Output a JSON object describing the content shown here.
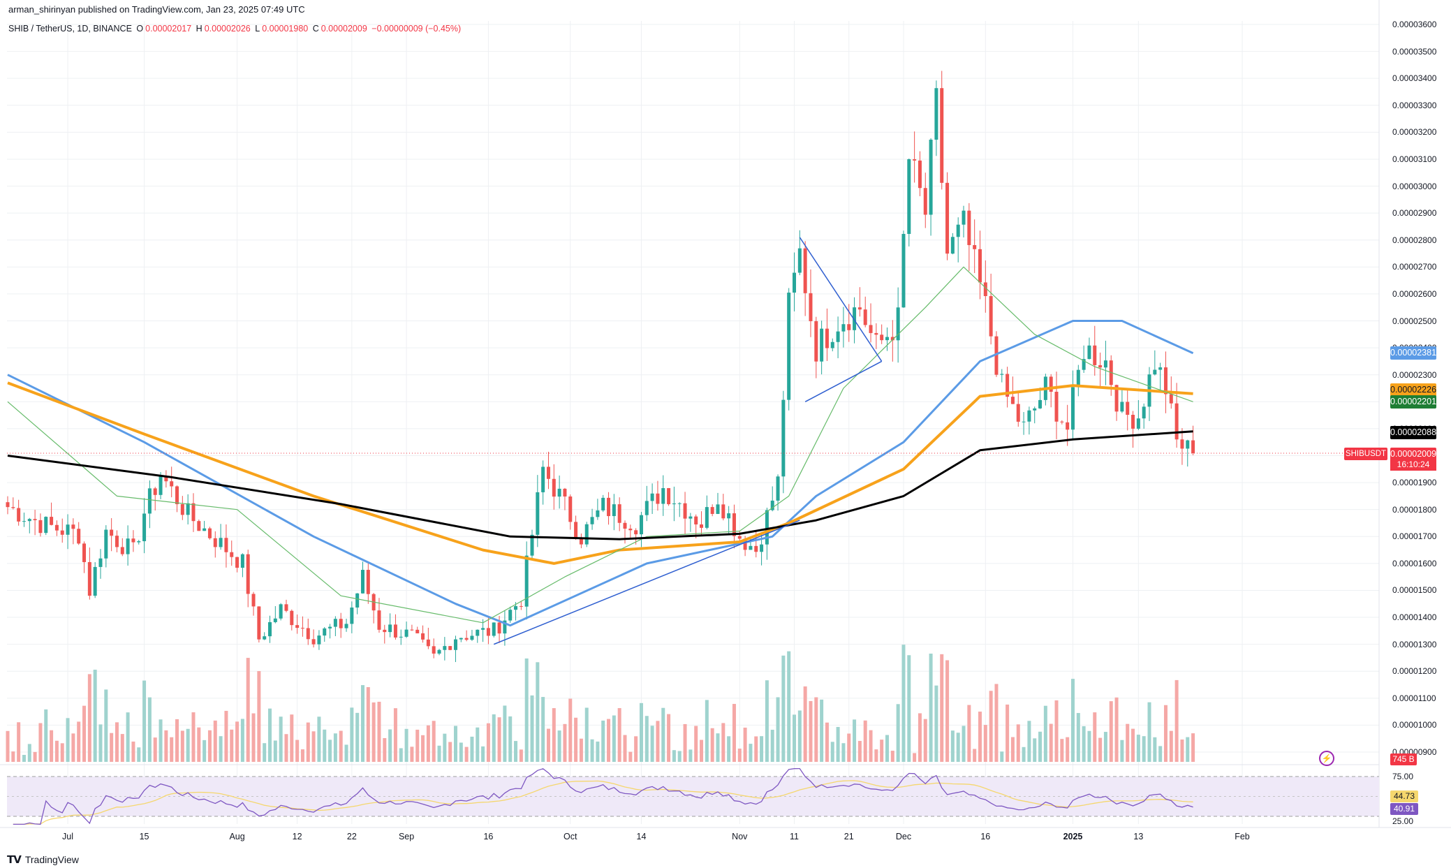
{
  "header": {
    "published": "arman_shirinyan published on TradingView.com, Jan 23, 2025 07:49 UTC"
  },
  "legend": {
    "symbol": "SHIB / TetherUS, 1D, BINANCE",
    "o_label": "O",
    "o": "0.00002017",
    "h_label": "H",
    "h": "0.00002026",
    "l_label": "L",
    "l": "0.00001980",
    "c_label": "C",
    "c": "0.00002009",
    "change": "−0.00000009 (−0.45%)"
  },
  "price_tags": {
    "ma_blue": "0.00002381",
    "ma_orange": "0.00002226",
    "ma_green": "0.00002201",
    "ma_black": "0.00002088",
    "last": "0.00002009",
    "symbol": "SHIBUSDT",
    "countdown": "16:10:24",
    "volume": "745 B",
    "rsi": "44.73",
    "rsi_ma": "40.91"
  },
  "colors": {
    "up": "#26a69a",
    "down": "#ef5350",
    "ma_blue": "#5b9be6",
    "ma_orange": "#f7a21b",
    "ma_green": "#66bb6a",
    "ma_black": "#000000",
    "rsi": "#7e57c2",
    "rsi_ma": "#f5d76e",
    "trendline": "#2f5fd0"
  },
  "footer": {
    "brand": "TradingView"
  },
  "chart_data": {
    "type": "candlestick",
    "title": "SHIB / TetherUS, 1D, BINANCE",
    "y_axis": {
      "min": 9e-06,
      "max": 3.6e-05,
      "step": 1e-06,
      "tick_labels": [
        "0.00003600",
        "0.00003500",
        "0.00003400",
        "0.00003300",
        "0.00003200",
        "0.00003100",
        "0.00003000",
        "0.00002900",
        "0.00002800",
        "0.00002700",
        "0.00002600",
        "0.00002500",
        "0.00002400",
        "0.00002300",
        "0.00002200",
        "0.00002100",
        "0.00002000",
        "0.00001900",
        "0.00001800",
        "0.00001700",
        "0.00001600",
        "0.00001500",
        "0.00001400",
        "0.00001300",
        "0.00001200",
        "0.00001100",
        "0.00001000",
        "0.00000900"
      ]
    },
    "x_axis": {
      "tick_labels": [
        {
          "label": "Jul",
          "date": "2024-07-01"
        },
        {
          "label": "15",
          "date": "2024-07-15"
        },
        {
          "label": "Aug",
          "date": "2024-08-01"
        },
        {
          "label": "12",
          "date": "2024-08-12"
        },
        {
          "label": "22",
          "date": "2024-08-22"
        },
        {
          "label": "Sep",
          "date": "2024-09-01"
        },
        {
          "label": "16",
          "date": "2024-09-16"
        },
        {
          "label": "Oct",
          "date": "2024-10-01"
        },
        {
          "label": "14",
          "date": "2024-10-14"
        },
        {
          "label": "Nov",
          "date": "2024-11-01"
        },
        {
          "label": "11",
          "date": "2024-11-11"
        },
        {
          "label": "21",
          "date": "2024-11-21"
        },
        {
          "label": "Dec",
          "date": "2024-12-01"
        },
        {
          "label": "16",
          "date": "2024-12-16"
        },
        {
          "label": "2025",
          "date": "2025-01-01",
          "bold": true
        },
        {
          "label": "13",
          "date": "2025-01-13"
        },
        {
          "label": "Feb",
          "date": "2025-02-01"
        }
      ],
      "range": [
        "2024-06-20",
        "2025-02-05"
      ]
    },
    "first_date": "2024-06-20",
    "close_keypoints": [
      [
        "2024-06-20",
        1.81e-05
      ],
      [
        "2024-06-27",
        1.74e-05
      ],
      [
        "2024-07-03",
        1.71e-05
      ],
      [
        "2024-07-05",
        1.5e-05
      ],
      [
        "2024-07-08",
        1.72e-05
      ],
      [
        "2024-07-13",
        1.64e-05
      ],
      [
        "2024-07-15",
        1.79e-05
      ],
      [
        "2024-07-18",
        1.93e-05
      ],
      [
        "2024-07-23",
        1.78e-05
      ],
      [
        "2024-07-28",
        1.69e-05
      ],
      [
        "2024-08-02",
        1.6e-05
      ],
      [
        "2024-08-05",
        1.32e-05
      ],
      [
        "2024-08-09",
        1.43e-05
      ],
      [
        "2024-08-15",
        1.33e-05
      ],
      [
        "2024-08-21",
        1.38e-05
      ],
      [
        "2024-08-24",
        1.55e-05
      ],
      [
        "2024-08-27",
        1.37e-05
      ],
      [
        "2024-09-02",
        1.33e-05
      ],
      [
        "2024-09-06",
        1.25e-05
      ],
      [
        "2024-09-10",
        1.33e-05
      ],
      [
        "2024-09-17",
        1.35e-05
      ],
      [
        "2024-09-22",
        1.47e-05
      ],
      [
        "2024-09-26",
        1.95e-05
      ],
      [
        "2024-09-29",
        1.85e-05
      ],
      [
        "2024-10-03",
        1.7e-05
      ],
      [
        "2024-10-07",
        1.81e-05
      ],
      [
        "2024-10-13",
        1.75e-05
      ],
      [
        "2024-10-18",
        1.88e-05
      ],
      [
        "2024-10-25",
        1.75e-05
      ],
      [
        "2024-10-28",
        1.85e-05
      ],
      [
        "2024-11-01",
        1.7e-05
      ],
      [
        "2024-11-04",
        1.65e-05
      ],
      [
        "2024-11-08",
        1.9e-05
      ],
      [
        "2024-11-10",
        2.55e-05
      ],
      [
        "2024-11-12",
        2.75e-05
      ],
      [
        "2024-11-15",
        2.4e-05
      ],
      [
        "2024-11-19",
        2.5e-05
      ],
      [
        "2024-11-23",
        2.55e-05
      ],
      [
        "2024-11-26",
        2.4e-05
      ],
      [
        "2024-11-30",
        2.5e-05
      ],
      [
        "2024-12-02",
        3.1e-05
      ],
      [
        "2024-12-05",
        2.9e-05
      ],
      [
        "2024-12-07",
        3.3e-05
      ],
      [
        "2024-12-09",
        2.75e-05
      ],
      [
        "2024-12-12",
        2.85e-05
      ],
      [
        "2024-12-16",
        2.55e-05
      ],
      [
        "2024-12-19",
        2.25e-05
      ],
      [
        "2024-12-23",
        2.1e-05
      ],
      [
        "2024-12-27",
        2.25e-05
      ],
      [
        "2024-12-31",
        2.1e-05
      ],
      [
        "2025-01-03",
        2.4e-05
      ],
      [
        "2025-01-07",
        2.35e-05
      ],
      [
        "2025-01-10",
        2.15e-05
      ],
      [
        "2025-01-13",
        2.15e-05
      ],
      [
        "2025-01-16",
        2.35e-05
      ],
      [
        "2025-01-18",
        2.25e-05
      ],
      [
        "2025-01-20",
        2.05e-05
      ],
      [
        "2025-01-23",
        2.01e-05
      ]
    ],
    "moving_averages": [
      {
        "price": 2.381e-05,
        "color": "#5b9be6",
        "points": [
          [
            "2024-06-20",
            2.3e-05
          ],
          [
            "2024-07-15",
            2.05e-05
          ],
          [
            "2024-08-15",
            1.7e-05
          ],
          [
            "2024-09-10",
            1.45e-05
          ],
          [
            "2024-09-20",
            1.37e-05
          ],
          [
            "2024-10-15",
            1.6e-05
          ],
          [
            "2024-11-07",
            1.7e-05
          ],
          [
            "2024-11-15",
            1.85e-05
          ],
          [
            "2024-12-01",
            2.05e-05
          ],
          [
            "2024-12-15",
            2.35e-05
          ],
          [
            "2025-01-01",
            2.5e-05
          ],
          [
            "2025-01-10",
            2.5e-05
          ],
          [
            "2025-01-23",
            2.38e-05
          ]
        ]
      },
      {
        "price": 2.226e-05,
        "color": "#f7a21b",
        "points": [
          [
            "2024-06-20",
            2.27e-05
          ],
          [
            "2024-07-15",
            2.08e-05
          ],
          [
            "2024-08-15",
            1.85e-05
          ],
          [
            "2024-09-15",
            1.65e-05
          ],
          [
            "2024-09-28",
            1.6e-05
          ],
          [
            "2024-10-10",
            1.65e-05
          ],
          [
            "2024-11-01",
            1.68e-05
          ],
          [
            "2024-11-10",
            1.75e-05
          ],
          [
            "2024-12-01",
            1.95e-05
          ],
          [
            "2024-12-15",
            2.22e-05
          ],
          [
            "2025-01-01",
            2.26e-05
          ],
          [
            "2025-01-23",
            2.23e-05
          ]
        ]
      },
      {
        "price": 2.201e-05,
        "color": "#66bb6a",
        "points": [
          [
            "2024-06-20",
            2.2e-05
          ],
          [
            "2024-07-10",
            1.85e-05
          ],
          [
            "2024-08-01",
            1.8e-05
          ],
          [
            "2024-08-20",
            1.48e-05
          ],
          [
            "2024-09-15",
            1.38e-05
          ],
          [
            "2024-09-30",
            1.55e-05
          ],
          [
            "2024-10-15",
            1.7e-05
          ],
          [
            "2024-11-01",
            1.72e-05
          ],
          [
            "2024-11-10",
            1.85e-05
          ],
          [
            "2024-11-20",
            2.25e-05
          ],
          [
            "2024-12-05",
            2.55e-05
          ],
          [
            "2024-12-12",
            2.7e-05
          ],
          [
            "2024-12-25",
            2.45e-05
          ],
          [
            "2025-01-05",
            2.33e-05
          ],
          [
            "2025-01-23",
            2.2e-05
          ]
        ]
      },
      {
        "price": 2.088e-05,
        "color": "#000000",
        "points": [
          [
            "2024-06-20",
            2e-05
          ],
          [
            "2024-07-20",
            1.92e-05
          ],
          [
            "2024-08-20",
            1.82e-05
          ],
          [
            "2024-09-20",
            1.7e-05
          ],
          [
            "2024-10-10",
            1.69e-05
          ],
          [
            "2024-11-01",
            1.71e-05
          ],
          [
            "2024-11-15",
            1.76e-05
          ],
          [
            "2024-12-01",
            1.85e-05
          ],
          [
            "2024-12-15",
            2.02e-05
          ],
          [
            "2025-01-01",
            2.06e-05
          ],
          [
            "2025-01-23",
            2.09e-05
          ]
        ]
      }
    ],
    "trendlines": [
      {
        "from": [
          "2024-09-17",
          1.3e-05
        ],
        "to": [
          "2024-11-12",
          1.76e-05
        ]
      },
      {
        "from": [
          "2024-11-12",
          2.81e-05
        ],
        "to": [
          "2024-11-27",
          2.35e-05
        ]
      },
      {
        "from": [
          "2024-11-13",
          2.2e-05
        ],
        "to": [
          "2024-11-27",
          2.35e-05
        ]
      }
    ],
    "last_price_line": 2.009e-05,
    "rsi": {
      "upper": 75,
      "lower": 25,
      "value": 44.73,
      "ma": 40.91,
      "tick_labels": [
        "75.00",
        "25.00"
      ]
    }
  }
}
